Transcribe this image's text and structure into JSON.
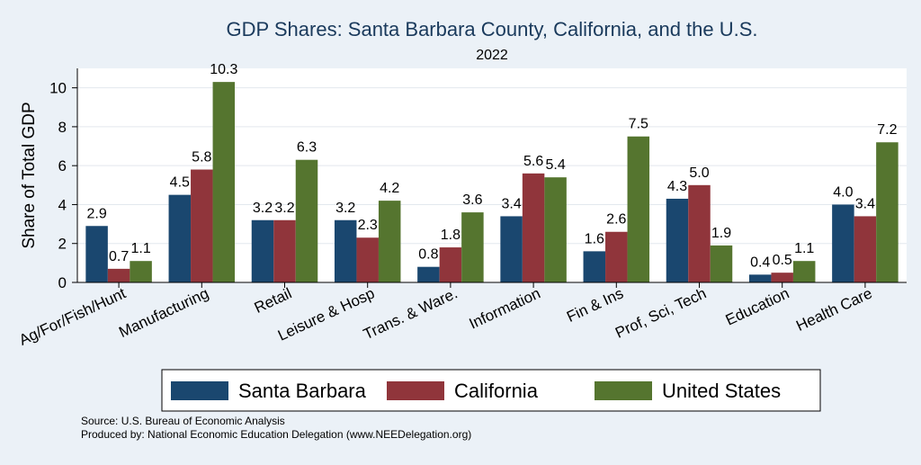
{
  "chart_data": {
    "type": "bar",
    "title": "GDP Shares: Santa Barbara County, California, and the U.S.",
    "subtitle": "2022",
    "ylabel": "Share of Total GDP",
    "xlabel": "",
    "ylim": [
      0,
      11
    ],
    "yticks": [
      0,
      2,
      4,
      6,
      8,
      10
    ],
    "grid": true,
    "legend_position": "bottom",
    "categories": [
      "Ag/For/Fish/Hunt",
      "Manufacturing",
      "Retail",
      "Leisure & Hosp",
      "Trans. & Ware.",
      "Information",
      "Fin & Ins",
      "Prof, Sci, Tech",
      "Education",
      "Health Care"
    ],
    "series": [
      {
        "name": "Santa Barbara",
        "color": "#1a476f",
        "values": [
          2.9,
          4.5,
          3.2,
          3.2,
          0.8,
          3.4,
          1.6,
          4.3,
          0.4,
          4.0
        ]
      },
      {
        "name": "California",
        "color": "#90353b",
        "values": [
          0.7,
          5.8,
          3.2,
          2.3,
          1.8,
          5.6,
          2.6,
          5.0,
          0.5,
          3.4
        ]
      },
      {
        "name": "United States",
        "color": "#55752f",
        "values": [
          1.1,
          10.3,
          6.3,
          4.2,
          3.6,
          5.4,
          7.5,
          1.9,
          1.1,
          7.2
        ]
      }
    ]
  },
  "notes": {
    "source": "Source: U.S. Bureau of Economic Analysis",
    "produced": "Produced by: National Economic Education Delegation (www.NEEDelegation.org)"
  }
}
